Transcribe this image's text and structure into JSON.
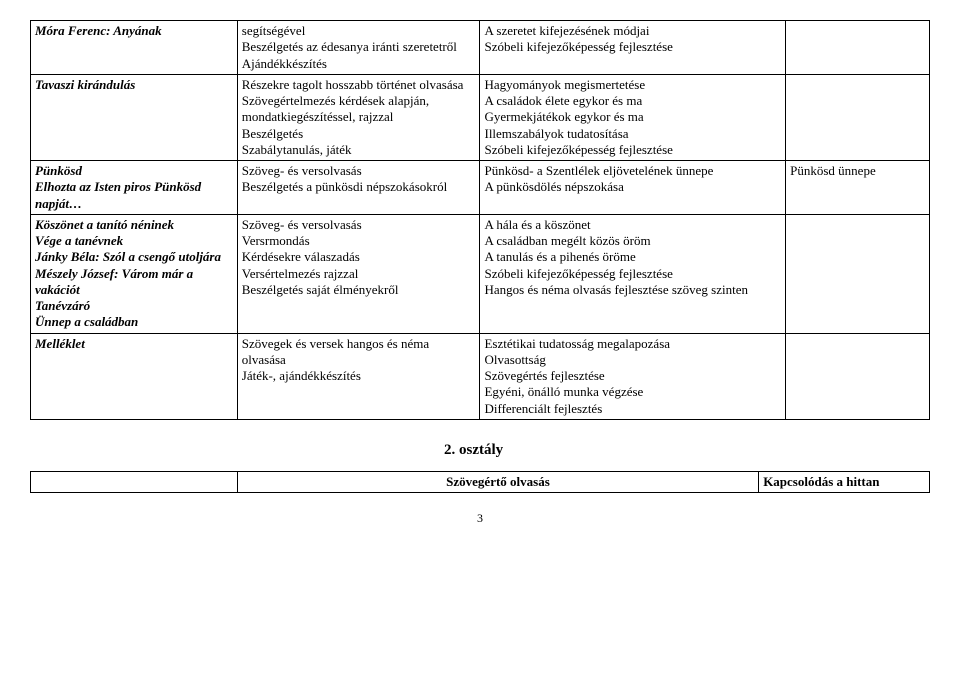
{
  "table1": {
    "rows": [
      {
        "c1": [
          {
            "text": "Móra Ferenc: Anyának",
            "style": "bolditalic"
          }
        ],
        "c2": [
          {
            "text": "segítségével"
          },
          {
            "text": "Beszélgetés az édesanya iránti szeretetről"
          },
          {
            "text": "Ajándékkészítés"
          }
        ],
        "c3": [
          {
            "text": "A szeretet kifejezésének módjai"
          },
          {
            "text": "Szóbeli kifejezőképesség fejlesztése"
          }
        ],
        "c4": []
      },
      {
        "c1": [
          {
            "text": "Tavaszi kirándulás",
            "style": "bolditalic"
          }
        ],
        "c2": [
          {
            "text": "Részekre tagolt hosszabb történet olvasása"
          },
          {
            "text": "Szövegértelmezés kérdések alapján, mondatkiegészítéssel, rajzzal"
          },
          {
            "text": "Beszélgetés"
          },
          {
            "text": "Szabálytanulás, játék"
          }
        ],
        "c3": [
          {
            "text": "Hagyományok megismertetése"
          },
          {
            "text": "A családok élete egykor és ma"
          },
          {
            "text": "Gyermekjátékok egykor és ma"
          },
          {
            "text": "Illemszabályok tudatosítása"
          },
          {
            "text": "Szóbeli kifejezőképesség fejlesztése"
          }
        ],
        "c4": []
      },
      {
        "c1": [
          {
            "text": "Pünkösd",
            "style": "bolditalic"
          },
          {
            "text": "Elhozta az Isten piros Pünkösd napját…",
            "style": "bolditalic"
          }
        ],
        "c2": [
          {
            "text": "Szöveg- és versolvasás"
          },
          {
            "text": "Beszélgetés a pünkösdi népszokásokról"
          }
        ],
        "c3": [
          {
            "text": "Pünkösd- a Szentlélek eljövetelének ünnepe"
          },
          {
            "text": "A pünkösdölés népszokása"
          }
        ],
        "c4": [
          {
            "text": "Pünkösd ünnepe"
          }
        ]
      },
      {
        "c1": [
          {
            "text": "Köszönet a tanító néninek",
            "style": "bolditalic"
          },
          {
            "text": "Vége a tanévnek",
            "style": "bolditalic"
          },
          {
            "text": "Jánky Béla: Szól a csengő utoljára",
            "style": "bolditalic"
          },
          {
            "text": "Mészely József: Várom már a vakációt",
            "style": "bolditalic"
          },
          {
            "text": "Tanévzáró",
            "style": "bolditalic"
          },
          {
            "text": "Ünnep a családban",
            "style": "bolditalic"
          }
        ],
        "c2": [
          {
            "text": "Szöveg- és versolvasás"
          },
          {
            "text": "Versrmondás"
          },
          {
            "text": "Kérdésekre válaszadás"
          },
          {
            "text": "Versértelmezés rajzzal"
          },
          {
            "text": "Beszélgetés saját élményekről"
          }
        ],
        "c3": [
          {
            "text": "A hála és a köszönet"
          },
          {
            "text": "A családban megélt közös öröm"
          },
          {
            "text": "A tanulás és a pihenés öröme"
          },
          {
            "text": "Szóbeli kifejezőképesség fejlesztése"
          },
          {
            "text": "Hangos és néma olvasás fejlesztése szöveg szinten"
          }
        ],
        "c4": []
      },
      {
        "c1": [
          {
            "text": "Melléklet",
            "style": "bolditalic"
          }
        ],
        "c2": [
          {
            "text": "Szövegek és versek hangos és néma olvasása"
          },
          {
            "text": "Játék-, ajándékkészítés"
          }
        ],
        "c3": [
          {
            "text": "Esztétikai tudatosság megalapozása"
          },
          {
            "text": "Olvasottság"
          },
          {
            "text": "Szövegértés fejlesztése"
          },
          {
            "text": "Egyéni, önálló munka végzése"
          },
          {
            "text": "Differenciált fejlesztés"
          }
        ],
        "c4": []
      }
    ]
  },
  "grade_heading": "2. osztály",
  "table2": {
    "c1": "",
    "c2": "Szövegértő olvasás",
    "c3": "Kapcsolódás a hittan"
  },
  "page_number": "3"
}
